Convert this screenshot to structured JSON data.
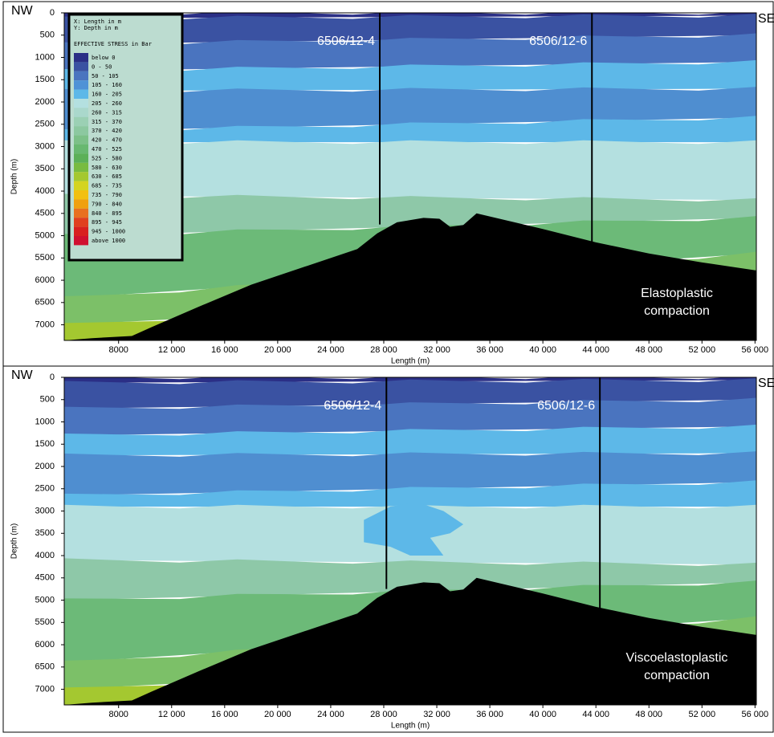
{
  "chart_data": [
    {
      "type": "section",
      "left_label": "NW",
      "right_label": "SE",
      "x_label": "Length (m)",
      "y_label": "Depth (m)",
      "xlim": [
        3900,
        56100
      ],
      "ylim": [
        0,
        7350
      ],
      "xticks": [
        8000,
        {
          "value": 12000,
          "label": "12 000"
        },
        {
          "value": 16000,
          "label": "16 000"
        },
        {
          "value": 20000,
          "label": "20 000"
        },
        {
          "value": 24000,
          "label": "24 000"
        },
        {
          "value": 28000,
          "label": "28 000"
        },
        {
          "value": 32000,
          "label": "32 000"
        },
        {
          "value": 36000,
          "label": "36 000"
        },
        {
          "value": 40000,
          "label": "40 000"
        },
        {
          "value": 44000,
          "label": "44 000"
        },
        {
          "value": 48000,
          "label": "48 000"
        },
        {
          "value": 52000,
          "label": "52 000"
        },
        {
          "value": 56000,
          "label": "56 000"
        }
      ],
      "yticks": [
        0,
        500,
        1000,
        1500,
        2000,
        2500,
        3000,
        3500,
        4000,
        4500,
        5000,
        5500,
        6000,
        6500,
        7000
      ],
      "wells": [
        {
          "name": "6506/12-4",
          "x": 27700
        },
        {
          "name": "6506/12-6",
          "x": 43700
        }
      ],
      "annotation": [
        "Elastoplastic",
        "compaction"
      ],
      "legend": {
        "notes": [
          "X: Length in m",
          "Y: Depth in m"
        ],
        "title": "EFFECTIVE STRESS in Bar",
        "entries": [
          {
            "name": "below 0",
            "color": "#2b2f86"
          },
          {
            "name": "0 - 50",
            "color": "#3a52a2"
          },
          {
            "name": "50 - 105",
            "color": "#4a74bf"
          },
          {
            "name": "105 - 160",
            "color": "#4f92d6"
          },
          {
            "name": "160 - 205",
            "color": "#5db8e8"
          },
          {
            "name": "205 - 260",
            "color": "#b4e0e0"
          },
          {
            "name": "260 - 315",
            "color": "#aad8cc"
          },
          {
            "name": "315 - 370",
            "color": "#9bd0b4"
          },
          {
            "name": "370 - 420",
            "color": "#8cc8a0"
          },
          {
            "name": "420 - 470",
            "color": "#7cc088"
          },
          {
            "name": "470 - 525",
            "color": "#68b870"
          },
          {
            "name": "525 - 580",
            "color": "#5cb058"
          },
          {
            "name": "580 - 630",
            "color": "#78bb40"
          },
          {
            "name": "630 - 685",
            "color": "#a4c830"
          },
          {
            "name": "685 - 735",
            "color": "#d4d420"
          },
          {
            "name": "735 - 790",
            "color": "#f2c010"
          },
          {
            "name": "790 - 840",
            "color": "#f0a010"
          },
          {
            "name": "840 - 895",
            "color": "#e87020"
          },
          {
            "name": "895 - 945",
            "color": "#e04020"
          },
          {
            "name": "945 - 1000",
            "color": "#d82020"
          },
          {
            "name": "above 1000",
            "color": "#d01030"
          }
        ]
      }
    },
    {
      "type": "section",
      "left_label": "NW",
      "right_label": "SE",
      "x_label": "Length (m)",
      "y_label": "Depth (m)",
      "xlim": [
        3900,
        56100
      ],
      "ylim": [
        0,
        7350
      ],
      "xticks": [
        8000,
        {
          "value": 12000,
          "label": "12 000"
        },
        {
          "value": 16000,
          "label": "16 000"
        },
        {
          "value": 20000,
          "label": "20 000"
        },
        {
          "value": 24000,
          "label": "24 000"
        },
        {
          "value": 28000,
          "label": "28 000"
        },
        {
          "value": 32000,
          "label": "32 000"
        },
        {
          "value": 36000,
          "label": "36 000"
        },
        {
          "value": 40000,
          "label": "40 000"
        },
        {
          "value": 44000,
          "label": "44 000"
        },
        {
          "value": 48000,
          "label": "48 000"
        },
        {
          "value": 52000,
          "label": "52 000"
        },
        {
          "value": 56000,
          "label": "56 000"
        }
      ],
      "yticks": [
        0,
        500,
        1000,
        1500,
        2000,
        2500,
        3000,
        3500,
        4000,
        4500,
        5000,
        5500,
        6000,
        6500,
        7000
      ],
      "wells": [
        {
          "name": "6506/12-4",
          "x": 28200
        },
        {
          "name": "6506/12-6",
          "x": 44300
        }
      ],
      "annotation": [
        "Viscoelastoplastic",
        "compaction"
      ]
    }
  ]
}
